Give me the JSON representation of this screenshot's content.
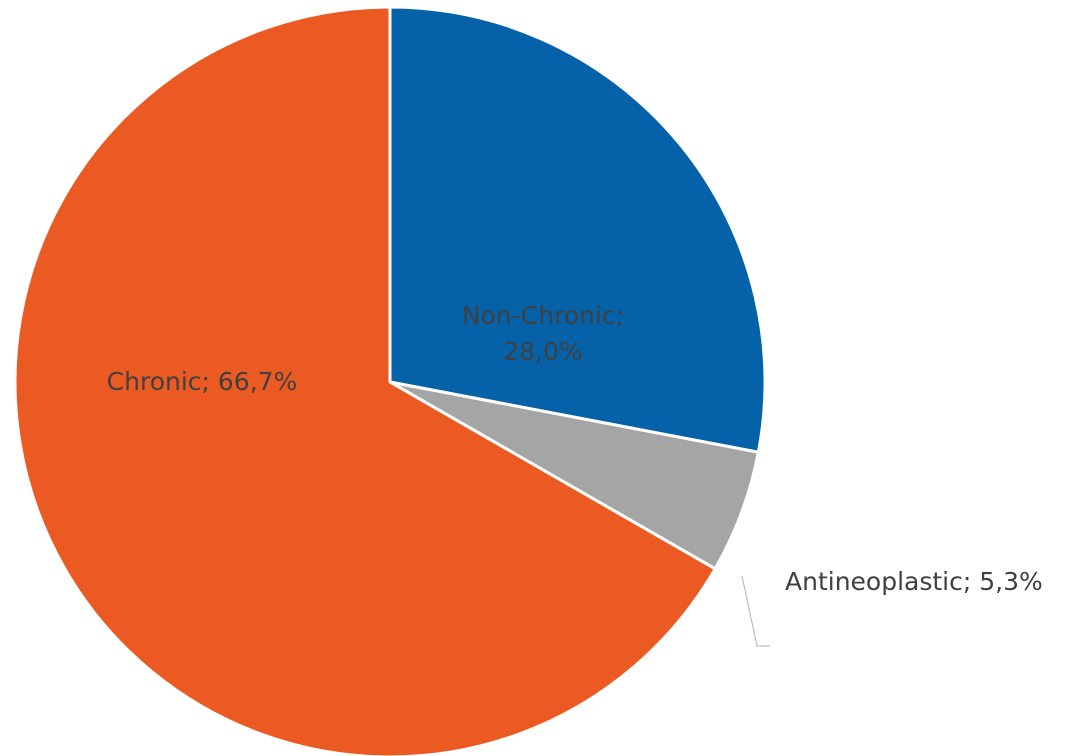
{
  "chart_data": {
    "type": "pie",
    "title": "",
    "start_angle_deg": 0,
    "direction": "clockwise",
    "legend": "none",
    "slices": [
      {
        "name": "Non-Chronic",
        "value": 28.0,
        "color": "#0562A8",
        "label_lines": [
          "Non-Chronic;",
          "28,0%"
        ]
      },
      {
        "name": "Antineoplastic",
        "value": 5.3,
        "color": "#A5A5A5",
        "label_lines": [
          "Antineoplastic; 5,3%"
        ]
      },
      {
        "name": "Chronic",
        "value": 66.7,
        "color": "#EC5A24",
        "label_lines": [
          "Chronic; 66,7%"
        ]
      }
    ]
  }
}
